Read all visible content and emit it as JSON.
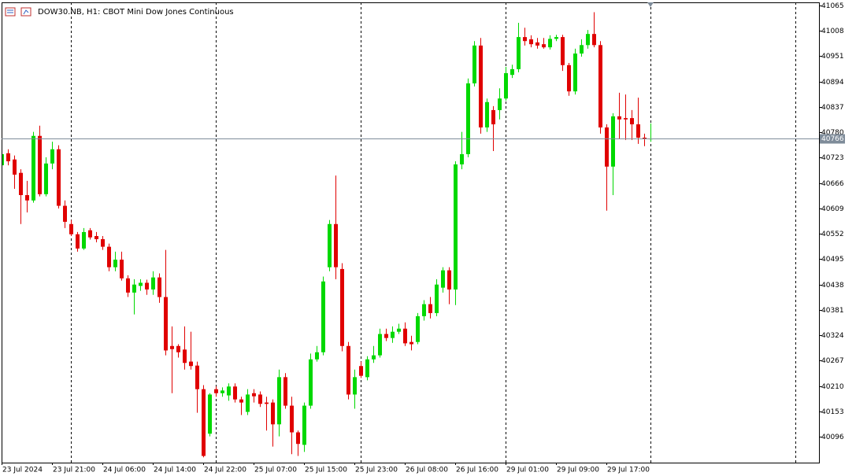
{
  "chart_data": {
    "type": "candlestick",
    "title": "DOW30.NB, H1:  CBOT Mini Dow Jones Continuous",
    "categories": [
      "23 Jul 2024",
      null,
      null,
      null,
      null,
      null,
      null,
      null,
      "23 Jul 21:00",
      null,
      null,
      null,
      null,
      null,
      null,
      null,
      "24 Jul 06:00",
      null,
      null,
      null,
      null,
      null,
      null,
      null,
      "24 Jul 14:00",
      null,
      null,
      null,
      null,
      null,
      null,
      null,
      "24 Jul 22:00",
      null,
      null,
      null,
      null,
      null,
      null,
      null,
      "25 Jul 07:00",
      null,
      null,
      null,
      null,
      null,
      null,
      null,
      "25 Jul 15:00",
      null,
      null,
      null,
      null,
      null,
      null,
      null,
      "25 Jul 23:00",
      null,
      null,
      null,
      null,
      null,
      null,
      null,
      "26 Jul 08:00",
      null,
      null,
      null,
      null,
      null,
      null,
      null,
      "26 Jul 16:00",
      null,
      null,
      null,
      null,
      null,
      null,
      null,
      "29 Jul 01:00",
      null,
      null,
      null,
      null,
      null,
      null,
      null,
      "29 Jul 09:00",
      null,
      null,
      null,
      null,
      null,
      null,
      null,
      "29 Jul 17:00",
      null,
      null,
      null,
      null,
      null,
      null,
      null
    ],
    "open": [
      40706,
      40733,
      40719,
      40689,
      40639,
      40627,
      40772,
      40641,
      40710,
      40742,
      40615,
      40574,
      40551,
      40519,
      40560,
      40547,
      40540,
      40523,
      40477,
      40494,
      40452,
      40420,
      40435,
      40442,
      40427,
      40454,
      40410,
      40300,
      40300,
      40292,
      40265,
      40256,
      40203,
      40103,
      40203,
      40194,
      40189,
      40209,
      40180,
      40152,
      40194,
      40191,
      40173,
      40173,
      40124,
      40230,
      40166,
      40106,
      40078,
      40166,
      40270,
      40286,
      40477,
      40574,
      40473,
      40300,
      40191,
      40255,
      40230,
      40270,
      40279,
      40327,
      40318,
      40332,
      40339,
      40309,
      40309,
      40367,
      40394,
      40374,
      40431,
      40470,
      40427,
      40708,
      40731,
      40890,
      40975,
      40791,
      40830,
      40830,
      40856,
      40909,
      40922,
      40994,
      40989,
      40982,
      40978,
      40971,
      40990,
      40994,
      40931,
      40872,
      40957,
      40976,
      41001,
      40976,
      40791,
      40703,
      40816,
      40812,
      40812,
      40798,
      40768,
      40765
    ],
    "high": [
      40742,
      40742,
      40728,
      40697,
      40671,
      40781,
      40795,
      40724,
      40759,
      40751,
      40627,
      40583,
      40556,
      40565,
      40565,
      40556,
      40547,
      40530,
      40512,
      40512,
      40459,
      40450,
      40450,
      40449,
      40468,
      40463,
      40516,
      40344,
      40304,
      40344,
      40332,
      40265,
      40212,
      40194,
      40209,
      40207,
      40216,
      40216,
      40186,
      40203,
      40203,
      40198,
      40186,
      40180,
      40247,
      40239,
      40186,
      40110,
      40173,
      40283,
      40300,
      40456,
      40583,
      40683,
      40486,
      40309,
      40247,
      40265,
      40277,
      40300,
      40339,
      40339,
      40344,
      40350,
      40353,
      40323,
      40374,
      40403,
      40410,
      40450,
      40477,
      40477,
      40715,
      40781,
      40901,
      40985,
      40992,
      40856,
      40839,
      40879,
      40927,
      40932,
      41026,
      41015,
      40998,
      40992,
      40992,
      40998,
      40999,
      40999,
      40936,
      40968,
      40989,
      41010,
      41050,
      40985,
      40798,
      40823,
      40869,
      40865,
      40830,
      40858,
      40777,
      40800
    ],
    "low": [
      40703,
      40706,
      40653,
      40574,
      40600,
      40622,
      40636,
      40636,
      40697,
      40609,
      40565,
      40547,
      40512,
      40516,
      40539,
      40533,
      40516,
      40468,
      40468,
      40447,
      40410,
      40371,
      40424,
      40415,
      40415,
      40397,
      40279,
      40194,
      40274,
      40247,
      40247,
      40150,
      40050,
      40097,
      40186,
      40186,
      40177,
      40173,
      40145,
      40145,
      40173,
      40163,
      40110,
      40074,
      40097,
      40159,
      40057,
      40053,
      40062,
      40159,
      40265,
      40279,
      40468,
      40450,
      40288,
      40180,
      40159,
      40228,
      40223,
      40262,
      40274,
      40311,
      40307,
      40327,
      40300,
      40290,
      40304,
      40357,
      40362,
      40367,
      40420,
      40394,
      40392,
      40697,
      40724,
      40883,
      40777,
      40781,
      40738,
      40809,
      40851,
      40902,
      40915,
      40975,
      40971,
      40968,
      40968,
      40966,
      40985,
      40918,
      40862,
      40865,
      40950,
      40968,
      40971,
      40777,
      40604,
      40639,
      40765,
      40763,
      40763,
      40754,
      40749,
      40759
    ],
    "close": [
      40731,
      40715,
      40685,
      40639,
      40627,
      40772,
      40641,
      40710,
      40742,
      40615,
      40579,
      40551,
      40519,
      40556,
      40544,
      40540,
      40523,
      40477,
      40494,
      40452,
      40420,
      40438,
      40442,
      40427,
      40454,
      40410,
      40290,
      40293,
      40286,
      40262,
      40255,
      40203,
      40053,
      40191,
      40194,
      40200,
      40209,
      40180,
      40173,
      40191,
      40187,
      40170,
      40170,
      40124,
      40230,
      40166,
      40106,
      40080,
      40166,
      40270,
      40286,
      40445,
      40574,
      40477,
      40300,
      40191,
      40230,
      40233,
      40270,
      40279,
      40327,
      40318,
      40332,
      40339,
      40306,
      40304,
      40367,
      40394,
      40374,
      40438,
      40470,
      40427,
      40708,
      40731,
      40890,
      40975,
      40791,
      40848,
      40798,
      40856,
      40913,
      40922,
      40994,
      40985,
      40978,
      40975,
      40971,
      40990,
      40994,
      40931,
      40872,
      40957,
      40976,
      41001,
      40976,
      40791,
      40703,
      40816,
      40809,
      40809,
      40798,
      40768,
      40765,
      40766
    ],
    "up_color": "#00d800",
    "down_color": "#e00000",
    "ylim": [
      40038,
      41072
    ],
    "yticks": [
      41065,
      41008,
      40951,
      40894,
      40837,
      40780,
      40723,
      40666,
      40609,
      40552,
      40495,
      40438,
      40381,
      40324,
      40267,
      40210,
      40153,
      40096
    ],
    "grid": false
  }
}
